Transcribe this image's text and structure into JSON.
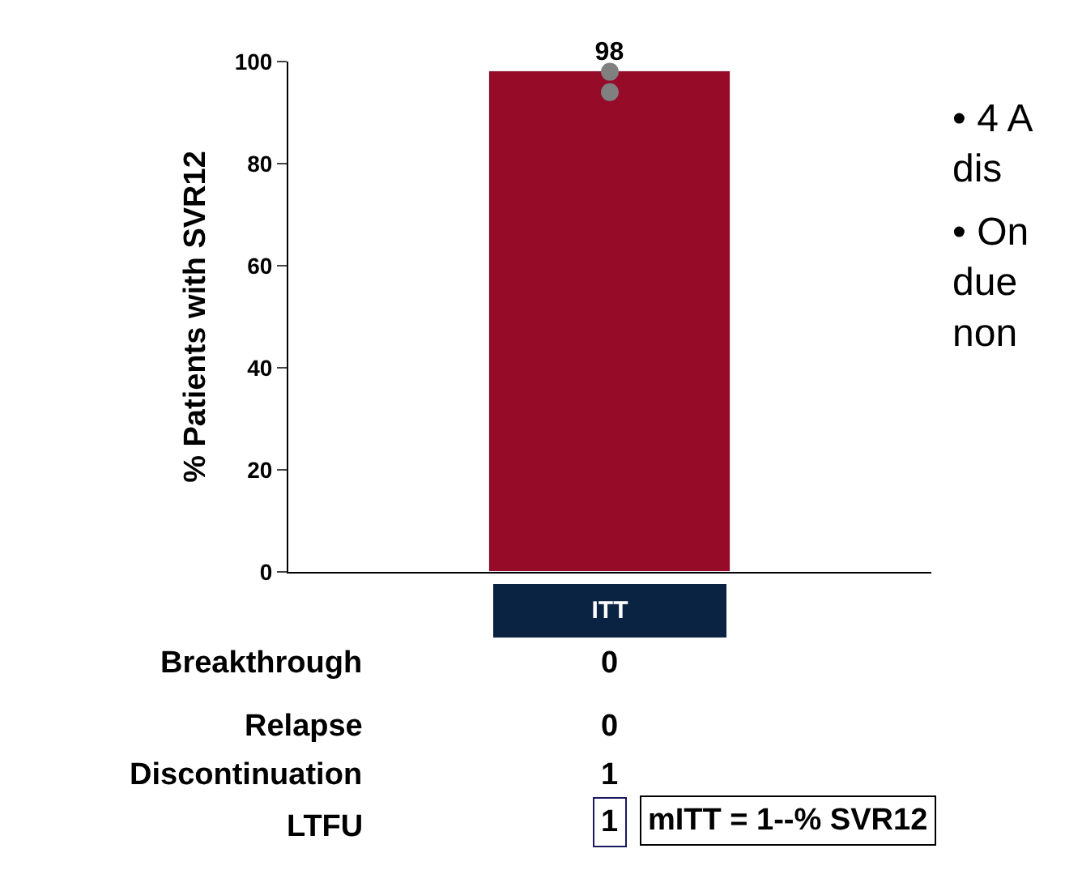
{
  "chart_data": {
    "type": "bar",
    "ylabel": "% Patients with SVR12",
    "categories": [
      "ITT"
    ],
    "series": [
      {
        "color": "#960c28",
        "values": [
          98
        ],
        "data_labels": true
      },
      {
        "type": "scatter",
        "color": "#808080",
        "x": [
          "ITT",
          "ITT"
        ],
        "values": [
          98,
          94
        ]
      }
    ],
    "ylim": [
      0,
      100
    ],
    "yticks": [
      0,
      20,
      40,
      60,
      80,
      100
    ],
    "annotations": [
      "Breakthrough",
      "0",
      "Relapse",
      "0",
      "Discontinuation",
      "1",
      "LTFU",
      "1",
      "mITT = 1--% SVR12",
      "• 4 A\ndis",
      "• On\ndue\nnon"
    ]
  }
}
